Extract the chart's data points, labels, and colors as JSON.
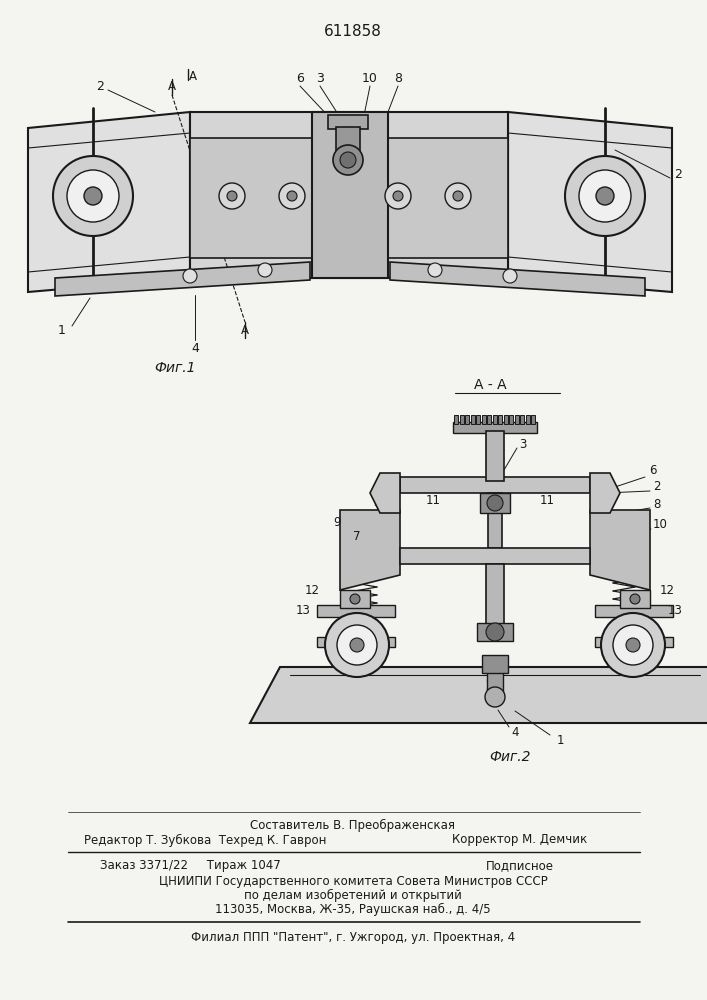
{
  "patent_number": "611858",
  "fig1_caption": "Фиг.1",
  "fig2_caption": "Фиг.2",
  "section_label": "А - А",
  "footer_line1": "Составитель В. Преображенская",
  "footer_line2_left": "Редактор Т. Зубкова  Техред К. Гаврон",
  "footer_line2_right": "Корректор М. Демчик",
  "footer_line3_left": "Заказ 3371/22     Тираж 1047",
  "footer_line3_right": "Подписное",
  "footer_line4": "ЦНИИПИ Государственного комитета Совета Министров СССР",
  "footer_line5": "по делам изобретений и открытий",
  "footer_line6": "113035, Москва, Ж-35, Раушская наб., д. 4/5",
  "footer_line7": "Филиал ППП \"Патент\", г. Ужгород, ул. Проектная, 4",
  "bg_color": "#f4f4f0",
  "line_color": "#1a1a1a",
  "text_color": "#1a1a1a"
}
